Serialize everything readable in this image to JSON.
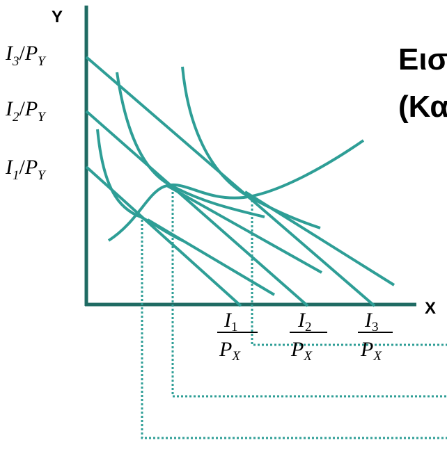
{
  "axes": {
    "y_label": "Y",
    "x_label": "X"
  },
  "title": {
    "line1": "Εισ",
    "line2": "(Κα"
  },
  "y_intercepts": [
    {
      "num": "I",
      "sub": "3",
      "den": "P",
      "den_sub": "Y"
    },
    {
      "num": "I",
      "sub": "2",
      "den": "P",
      "den_sub": "Y"
    },
    {
      "num": "I",
      "sub": "1",
      "den": "P",
      "den_sub": "Y"
    }
  ],
  "x_intercepts": [
    {
      "num": "I",
      "sub": "1",
      "den": "P",
      "den_sub": "X"
    },
    {
      "num": "I",
      "sub": "2",
      "den": "P",
      "den_sub": "X"
    },
    {
      "num": "I",
      "sub": "3",
      "den": "P",
      "den_sub": "X"
    }
  ],
  "colors": {
    "curve": "#2e9e96",
    "axis": "#1f6b63",
    "dotted": "#2e9e96",
    "text": "#000000"
  }
}
